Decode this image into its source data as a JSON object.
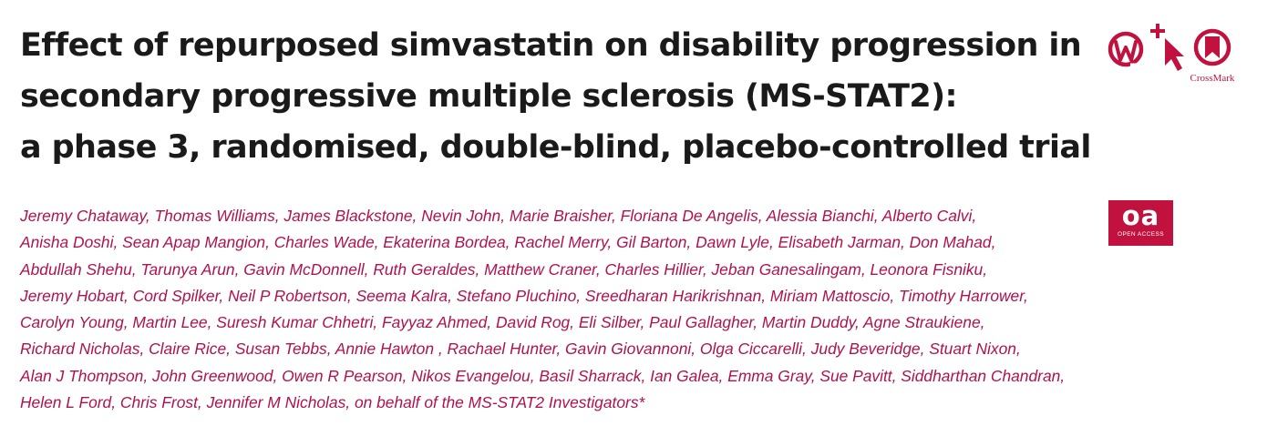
{
  "article": {
    "title_lines": [
      "Effect of repurposed simvastatin on disability progression in",
      "secondary progressive multiple sclerosis (MS-STAT2):",
      "a phase 3, randomised, double-blind, placebo-controlled trial"
    ],
    "author_lines": [
      "Jeremy Chataway, Thomas Williams, James Blackstone, Nevin John, Marie Braisher, Floriana De Angelis, Alessia Bianchi, Alberto Calvi,",
      "Anisha Doshi, Sean Apap Mangion, Charles Wade, Ekaterina Bordea, Rachel Merry, Gil Barton, Dawn Lyle, Elisabeth Jarman, Don Mahad,",
      "Abdullah Shehu, Tarunya Arun, Gavin McDonnell, Ruth Geraldes, Matthew Craner, Charles Hillier, Jeban Ganesalingam, Leonora Fisniku,",
      "Jeremy Hobart, Cord Spilker, Neil P Robertson, Seema Kalra, Stefano Pluchino, Sreedharan Harikrishnan, Miriam Mattoscio, Timothy Harrower,",
      "Carolyn Young, Martin Lee, Suresh Kumar Chhetri, Fayyaz Ahmed, David Rog, Eli Silber, Paul Gallagher, Martin Duddy, Agne Straukiene,",
      "Richard Nicholas, Claire Rice, Susan Tebbs, Annie Hawton , Rachael Hunter, Gavin Giovannoni, Olga Ciccarelli, Judy Beveridge, Stuart Nixon,",
      "Alan J Thompson, John Greenwood, Owen R Pearson, Nikos Evangelou, Basil Sharrack, Ian Galea, Emma Gray, Sue Pavitt, Siddharthan Chandran,",
      "Helen L Ford, Chris Frost, Jennifer M Nicholas, on behalf of the MS-STAT2 Investigators*"
    ]
  },
  "badges": {
    "crossmark_label": "CrossMark",
    "oa_logo": "oa",
    "oa_text": "OPEN ACCESS"
  },
  "icons": [
    "wiley-w-icon",
    "add-cursor-icon",
    "crossmark-icon"
  ],
  "colors": {
    "title": "#1a1a1a",
    "authors": "#b0124e",
    "brand": "#c1123f"
  }
}
